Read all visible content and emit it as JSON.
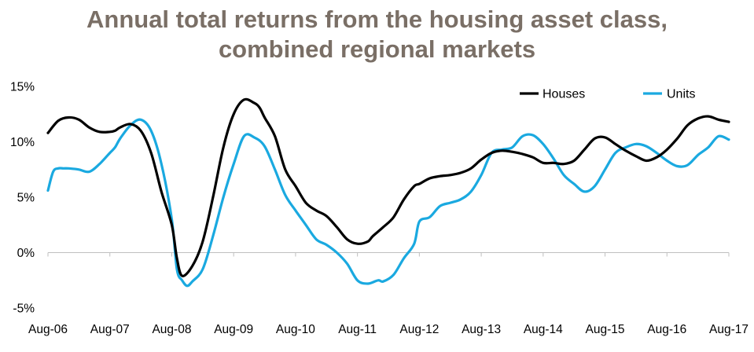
{
  "chart_data": {
    "type": "line",
    "title": "Annual total returns from the housing asset class,",
    "subtitle": "combined regional markets",
    "xlabel": "",
    "ylabel": "",
    "ylim": [
      -5,
      15
    ],
    "yticks": [
      15,
      10,
      5,
      0,
      -5
    ],
    "ytick_labels": [
      "15%",
      "10%",
      "5%",
      "0%",
      "-5%"
    ],
    "x_start": "Aug-06",
    "x_end": "Aug-17",
    "xtick_labels": [
      "Aug-06",
      "Aug-07",
      "Aug-08",
      "Aug-09",
      "Aug-10",
      "Aug-11",
      "Aug-12",
      "Aug-13",
      "Aug-14",
      "Aug-15",
      "Aug-16",
      "Aug-17"
    ],
    "grid": false,
    "legend_position": "top-right",
    "colors": {
      "Houses": "#000000",
      "Units": "#1aa9e0",
      "title": "#7a6f66"
    },
    "series": [
      {
        "name": "Houses",
        "x": [
          "Aug-06",
          "Oct-06",
          "Dec-06",
          "Feb-07",
          "Apr-07",
          "Jun-07",
          "Aug-07",
          "Sep-07",
          "Oct-07",
          "Dec-07",
          "Feb-08",
          "Apr-08",
          "Jun-08",
          "Aug-08",
          "Sep-08",
          "Oct-08",
          "Dec-08",
          "Feb-09",
          "Apr-09",
          "Jun-09",
          "Aug-09",
          "Oct-09",
          "Dec-09",
          "Jan-10",
          "Feb-10",
          "Apr-10",
          "Jun-10",
          "Aug-10",
          "Oct-10",
          "Dec-10",
          "Feb-11",
          "Apr-11",
          "Jun-11",
          "Aug-11",
          "Oct-11",
          "Nov-11",
          "Jan-12",
          "Mar-12",
          "May-12",
          "Jul-12",
          "Aug-12",
          "Oct-12",
          "Dec-12",
          "Feb-13",
          "Apr-13",
          "Jun-13",
          "Aug-13",
          "Oct-13",
          "Dec-13",
          "Feb-14",
          "Apr-14",
          "Jun-14",
          "Aug-14",
          "Oct-14",
          "Dec-14",
          "Feb-15",
          "Apr-15",
          "Jun-15",
          "Aug-15",
          "Oct-15",
          "Dec-15",
          "Feb-16",
          "Apr-16",
          "Jun-16",
          "Aug-16",
          "Oct-16",
          "Dec-16",
          "Feb-17",
          "Apr-17",
          "Jun-17",
          "Aug-17"
        ],
        "values": [
          10.8,
          11.9,
          12.2,
          12.0,
          11.3,
          10.9,
          10.9,
          11.0,
          11.3,
          11.6,
          11.0,
          9.0,
          5.5,
          2.5,
          -0.5,
          -2.1,
          -1.2,
          1.0,
          5.0,
          9.5,
          12.5,
          13.8,
          13.5,
          13.1,
          12.2,
          10.5,
          7.5,
          6.0,
          4.5,
          3.8,
          3.3,
          2.3,
          1.2,
          0.8,
          1.0,
          1.5,
          2.3,
          3.2,
          4.8,
          6.0,
          6.2,
          6.7,
          6.9,
          7.0,
          7.2,
          7.6,
          8.4,
          9.0,
          9.2,
          9.1,
          8.9,
          8.6,
          8.1,
          8.1,
          8.0,
          8.3,
          9.3,
          10.3,
          10.4,
          9.8,
          9.2,
          8.7,
          8.3,
          8.6,
          9.3,
          10.3,
          11.5,
          12.1,
          12.3,
          12.0,
          11.8
        ]
      },
      {
        "name": "Units",
        "x": [
          "Aug-06",
          "Sep-06",
          "Oct-06",
          "Nov-06",
          "Dec-06",
          "Feb-07",
          "Apr-07",
          "Jun-07",
          "Aug-07",
          "Sep-07",
          "Oct-07",
          "Dec-07",
          "Feb-08",
          "Apr-08",
          "Jun-08",
          "Aug-08",
          "Sep-08",
          "Oct-08",
          "Nov-08",
          "Dec-08",
          "Feb-09",
          "Apr-09",
          "Jun-09",
          "Aug-09",
          "Oct-09",
          "Dec-09",
          "Feb-10",
          "Apr-10",
          "Jun-10",
          "Aug-10",
          "Oct-10",
          "Dec-10",
          "Feb-11",
          "Apr-11",
          "Jun-11",
          "Aug-11",
          "Oct-11",
          "Dec-11",
          "Jan-12",
          "Mar-12",
          "May-12",
          "Jul-12",
          "Aug-12",
          "Oct-12",
          "Dec-12",
          "Feb-13",
          "Apr-13",
          "Jun-13",
          "Aug-13",
          "Oct-13",
          "Dec-13",
          "Feb-14",
          "Apr-14",
          "Jun-14",
          "Aug-14",
          "Oct-14",
          "Dec-14",
          "Feb-15",
          "Apr-15",
          "Jun-15",
          "Aug-15",
          "Oct-15",
          "Dec-15",
          "Feb-16",
          "Apr-16",
          "Jun-16",
          "Aug-16",
          "Oct-16",
          "Dec-16",
          "Feb-17",
          "Apr-17",
          "Jun-17",
          "Aug-17"
        ],
        "values": [
          5.6,
          7.3,
          7.6,
          7.6,
          7.6,
          7.5,
          7.3,
          8.0,
          9.0,
          9.5,
          10.3,
          11.5,
          12.0,
          11.0,
          8.0,
          3.0,
          -1.5,
          -2.5,
          -3.0,
          -2.6,
          -1.5,
          1.5,
          5.0,
          8.0,
          10.5,
          10.4,
          9.6,
          7.5,
          5.2,
          3.8,
          2.5,
          1.2,
          0.7,
          0.0,
          -1.0,
          -2.5,
          -2.8,
          -2.5,
          -2.6,
          -2.0,
          -0.5,
          0.8,
          2.8,
          3.2,
          4.2,
          4.5,
          4.8,
          5.5,
          7.0,
          9.0,
          9.3,
          9.5,
          10.5,
          10.6,
          9.8,
          8.5,
          7.0,
          6.2,
          5.5,
          6.0,
          7.5,
          9.0,
          9.5,
          9.8,
          9.6,
          9.0,
          8.3,
          7.8,
          7.9,
          8.8,
          9.5,
          10.5,
          10.2
        ]
      }
    ]
  }
}
